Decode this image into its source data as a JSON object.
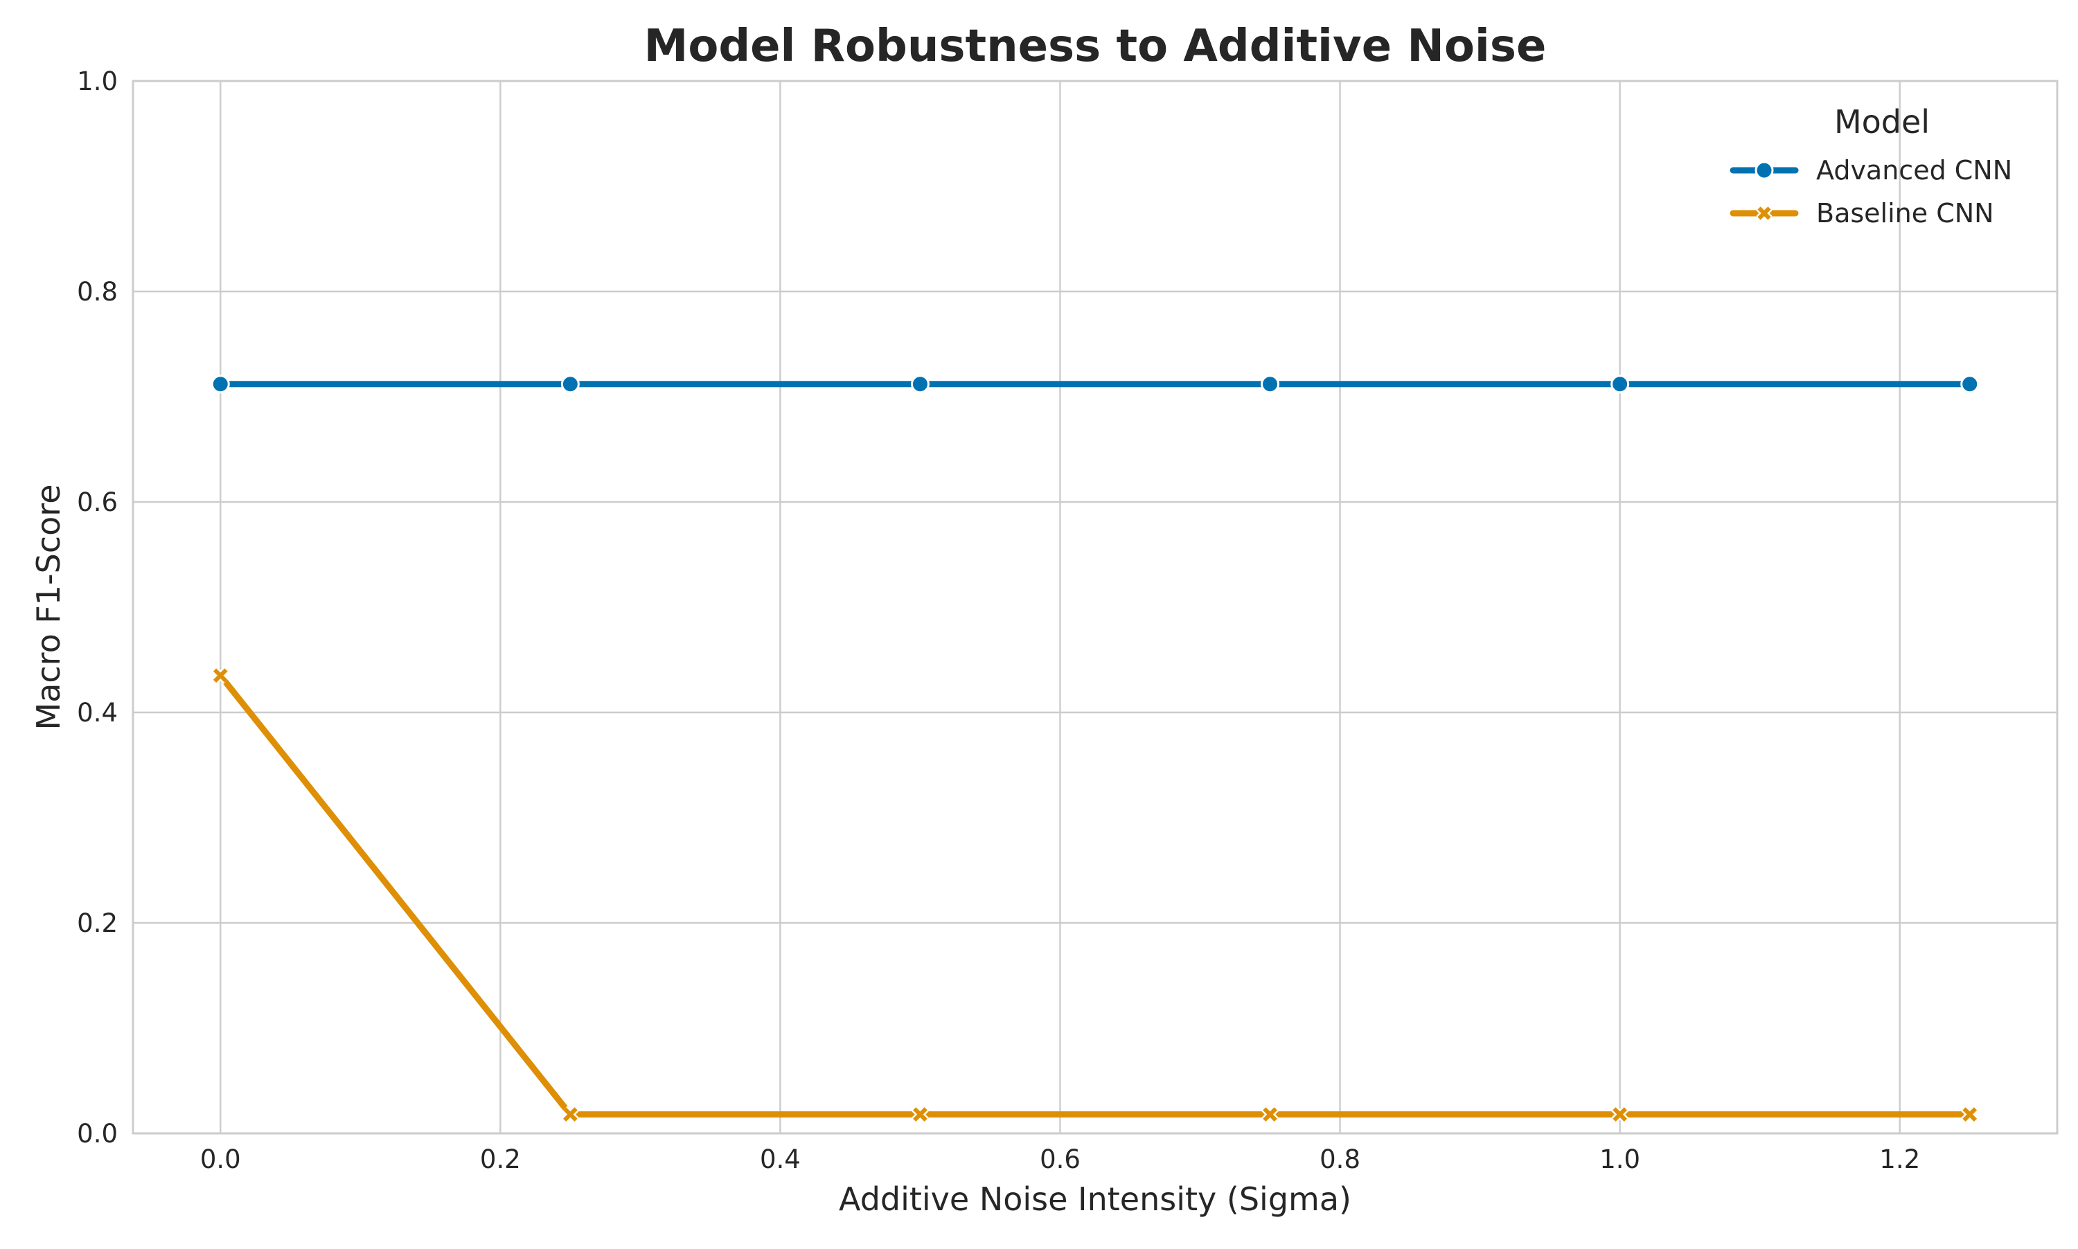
{
  "chart_data": {
    "type": "line",
    "title": "Model Robustness to Additive Noise",
    "xlabel": "Additive Noise Intensity (Sigma)",
    "ylabel": "Macro F1-Score",
    "xlim": [
      -0.0625,
      1.3125
    ],
    "ylim": [
      0,
      1
    ],
    "xticks": [
      0.0,
      0.2,
      0.4,
      0.6,
      0.8,
      1.0,
      1.2
    ],
    "xtick_labels": [
      "0.0",
      "0.2",
      "0.4",
      "0.6",
      "0.8",
      "1.0",
      "1.2"
    ],
    "yticks": [
      0.0,
      0.2,
      0.4,
      0.6,
      0.8,
      1.0
    ],
    "ytick_labels": [
      "0.0",
      "0.2",
      "0.4",
      "0.6",
      "0.8",
      "1.0"
    ],
    "grid": true,
    "legend": {
      "title": "Model",
      "placement": "top-right"
    },
    "x": [
      0.0,
      0.25,
      0.5,
      0.75,
      1.0,
      1.25
    ],
    "series": [
      {
        "name": "Advanced CNN",
        "marker": "circle",
        "color": "#0072b2",
        "values": [
          0.712,
          0.712,
          0.712,
          0.712,
          0.712,
          0.712
        ]
      },
      {
        "name": "Baseline CNN",
        "marker": "x",
        "color": "#de8f05",
        "values": [
          0.435,
          0.018,
          0.018,
          0.018,
          0.018,
          0.018
        ]
      }
    ]
  }
}
